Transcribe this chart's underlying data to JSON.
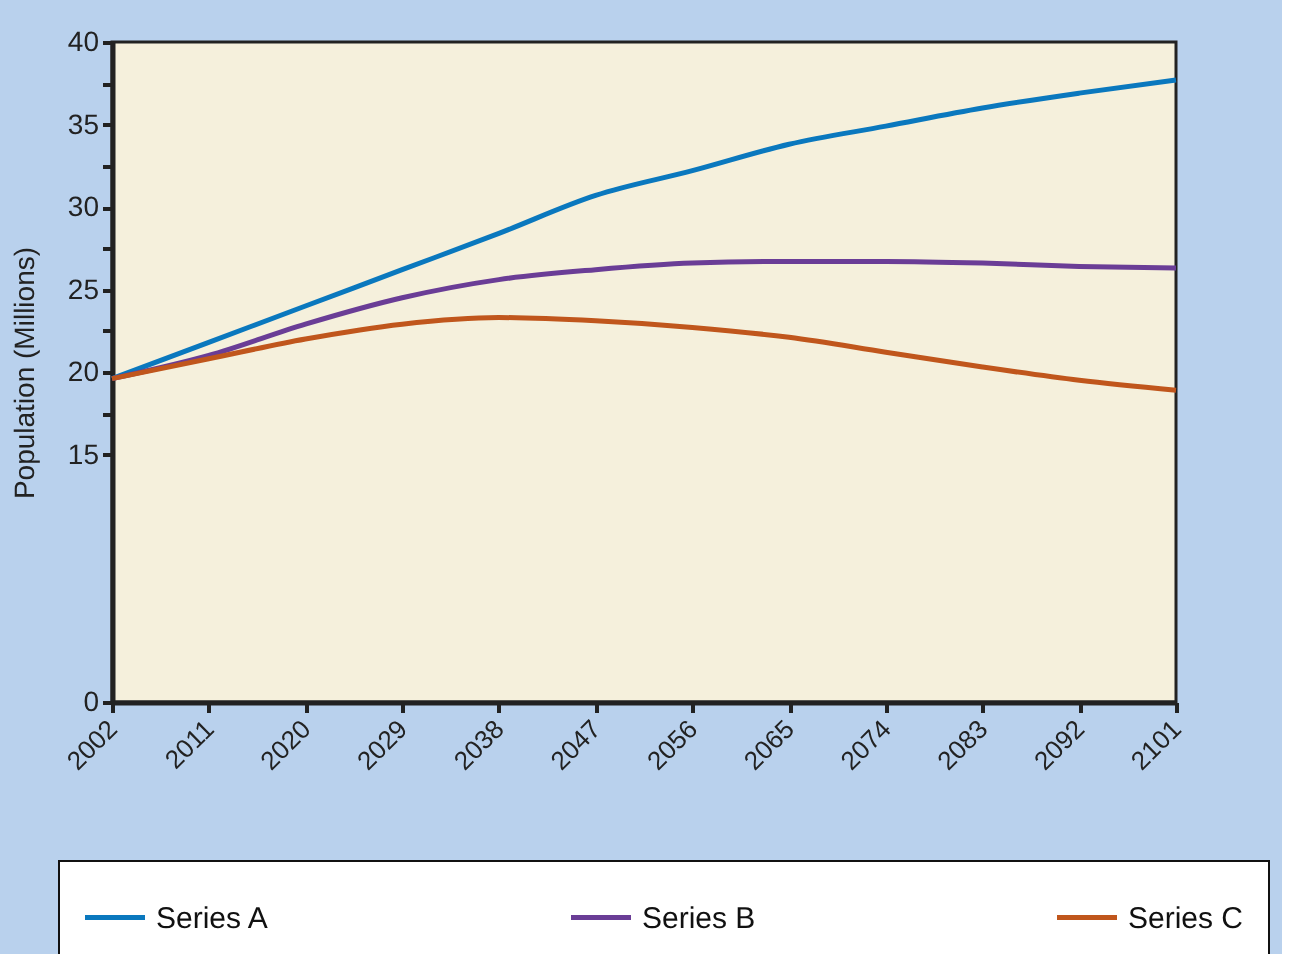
{
  "chart_data": {
    "type": "line",
    "ylabel": "Population (Millions)",
    "x": [
      2002,
      2011,
      2020,
      2029,
      2038,
      2047,
      2056,
      2065,
      2074,
      2083,
      2092,
      2101
    ],
    "series": [
      {
        "name": "Series A",
        "color": "#0a78be",
        "values": [
          19.6,
          21.8,
          24.0,
          26.2,
          28.4,
          30.7,
          32.2,
          33.8,
          34.9,
          36.0,
          36.9,
          37.7
        ]
      },
      {
        "name": "Series B",
        "color": "#6a3d96",
        "values": [
          19.6,
          21.0,
          22.9,
          24.5,
          25.6,
          26.2,
          26.6,
          26.7,
          26.7,
          26.6,
          26.4,
          26.3
        ]
      },
      {
        "name": "Series C",
        "color": "#c0561c",
        "values": [
          19.6,
          20.8,
          22.0,
          22.9,
          23.3,
          23.1,
          22.7,
          22.1,
          21.2,
          20.3,
          19.5,
          18.9
        ]
      }
    ],
    "xlim": [
      2002,
      2101
    ],
    "xticks": [
      2002,
      2011,
      2020,
      2029,
      2038,
      2047,
      2056,
      2065,
      2074,
      2083,
      2092,
      2101
    ],
    "ylim": [
      0,
      40
    ],
    "yticks": [
      0,
      15,
      {
        "value": 17.5,
        "label": null
      },
      20,
      {
        "value": 22.5,
        "label": null
      },
      25,
      {
        "value": 27.5,
        "label": null
      },
      30,
      {
        "value": 32.5,
        "label": null
      },
      35,
      {
        "value": 37.5,
        "label": null
      },
      40
    ],
    "grid": false,
    "legend": "bottom",
    "marker": "none",
    "line_style": "solid"
  }
}
